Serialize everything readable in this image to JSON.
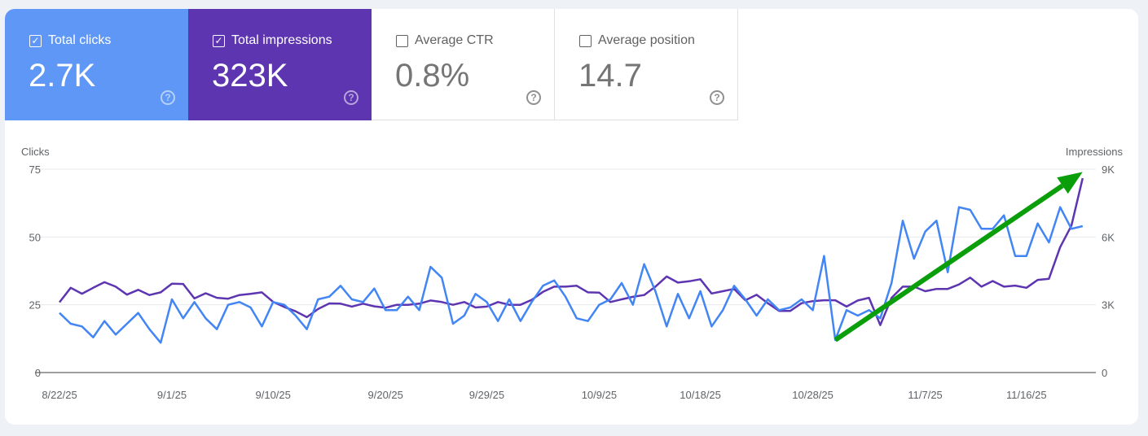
{
  "metrics": [
    {
      "label": "Total clicks",
      "value": "2.7K",
      "checked": true,
      "color": "#5e97f6"
    },
    {
      "label": "Total impressions",
      "value": "323K",
      "checked": true,
      "color": "#5e35b1"
    },
    {
      "label": "Average CTR",
      "value": "0.8%",
      "checked": false
    },
    {
      "label": "Average position",
      "value": "14.7",
      "checked": false
    }
  ],
  "icons": {
    "checkbox": "checkbox-icon",
    "help": "help-circle-icon",
    "annotation": "green-trend-arrow"
  },
  "chart_data": {
    "type": "line",
    "left_axis_label": "Clicks",
    "right_axis_label": "Impressions",
    "left_ticks": [
      "0",
      "25",
      "50",
      "75"
    ],
    "left_range": [
      0,
      75
    ],
    "right_ticks": [
      "0",
      "3K",
      "6K",
      "9K"
    ],
    "right_range": [
      0,
      9000
    ],
    "x_tick_labels": [
      {
        "label": "8/22/25",
        "date": "8/22"
      },
      {
        "label": "9/1/25",
        "date": "9/1"
      },
      {
        "label": "9/10/25",
        "date": "9/10"
      },
      {
        "label": "9/20/25",
        "date": "9/20"
      },
      {
        "label": "9/29/25",
        "date": "9/29"
      },
      {
        "label": "10/9/25",
        "date": "10/9"
      },
      {
        "label": "10/18/25",
        "date": "10/18"
      },
      {
        "label": "10/28/25",
        "date": "10/28"
      },
      {
        "label": "11/7/25",
        "date": "11/7"
      },
      {
        "label": "11/16/25",
        "date": "11/16"
      }
    ],
    "grid": true,
    "dates": [
      "8/22",
      "8/23",
      "8/24",
      "8/25",
      "8/26",
      "8/27",
      "8/28",
      "8/29",
      "8/30",
      "8/31",
      "9/1",
      "9/2",
      "9/3",
      "9/4",
      "9/5",
      "9/6",
      "9/7",
      "9/8",
      "9/9",
      "9/10",
      "9/11",
      "9/12",
      "9/13",
      "9/14",
      "9/15",
      "9/16",
      "9/17",
      "9/18",
      "9/19",
      "9/20",
      "9/21",
      "9/22",
      "9/23",
      "9/24",
      "9/25",
      "9/26",
      "9/27",
      "9/28",
      "9/29",
      "9/30",
      "10/1",
      "10/2",
      "10/3",
      "10/4",
      "10/5",
      "10/6",
      "10/7",
      "10/8",
      "10/9",
      "10/10",
      "10/11",
      "10/12",
      "10/13",
      "10/14",
      "10/15",
      "10/16",
      "10/17",
      "10/18",
      "10/19",
      "10/20",
      "10/21",
      "10/22",
      "10/23",
      "10/24",
      "10/25",
      "10/26",
      "10/27",
      "10/28",
      "10/29",
      "10/30",
      "10/31",
      "11/1",
      "11/2",
      "11/3",
      "11/4",
      "11/5",
      "11/6",
      "11/7",
      "11/8",
      "11/9",
      "11/10",
      "11/11",
      "11/12",
      "11/13",
      "11/14",
      "11/15",
      "11/16",
      "11/17",
      "11/18",
      "11/19",
      "11/20",
      "11/21"
    ],
    "series": [
      {
        "name": "Clicks",
        "axis": "left",
        "color": "#4285f4",
        "values": [
          22,
          18,
          17,
          13,
          19,
          14,
          18,
          22,
          16,
          11,
          27,
          20,
          26,
          20,
          16,
          25,
          26,
          24,
          17,
          26,
          25,
          21,
          16,
          27,
          28,
          32,
          27,
          26,
          31,
          23,
          23,
          28,
          23,
          39,
          35,
          18,
          21,
          29,
          26,
          19,
          27,
          19,
          26,
          32,
          34,
          28,
          20,
          19,
          25,
          27,
          33,
          25,
          40,
          30,
          17,
          29,
          20,
          30,
          17,
          23,
          32,
          27,
          21,
          27,
          23,
          24,
          27,
          23,
          43,
          12,
          23,
          21,
          23,
          20,
          33,
          56,
          42,
          52,
          56,
          37,
          61,
          60,
          53,
          53,
          58,
          43,
          43,
          55,
          48,
          61,
          53,
          54
        ]
      },
      {
        "name": "Impressions",
        "axis": "right",
        "color": "#5e35b1",
        "values": [
          3110,
          3750,
          3490,
          3750,
          4000,
          3800,
          3450,
          3660,
          3430,
          3550,
          3930,
          3920,
          3280,
          3510,
          3310,
          3270,
          3430,
          3480,
          3550,
          3130,
          2900,
          2710,
          2450,
          2810,
          3060,
          3050,
          2920,
          3050,
          2930,
          2870,
          3000,
          3000,
          3050,
          3190,
          3120,
          3000,
          3120,
          2880,
          2920,
          3120,
          3000,
          3000,
          3220,
          3570,
          3800,
          3800,
          3840,
          3550,
          3540,
          3120,
          3240,
          3350,
          3430,
          3800,
          4250,
          3980,
          4040,
          4130,
          3500,
          3600,
          3700,
          3200,
          3440,
          3070,
          2730,
          2730,
          3070,
          3160,
          3200,
          3200,
          2920,
          3190,
          3310,
          2100,
          3300,
          3800,
          3800,
          3600,
          3700,
          3700,
          3900,
          4200,
          3800,
          4050,
          3800,
          3850,
          3750,
          4100,
          4150,
          5550,
          6500,
          8600
        ]
      }
    ],
    "annotation": {
      "type": "arrow",
      "color": "#0a9e0a",
      "from": {
        "date": "10/30",
        "clicks": 12
      },
      "to": {
        "date": "11/21",
        "clicks": 74
      }
    }
  }
}
